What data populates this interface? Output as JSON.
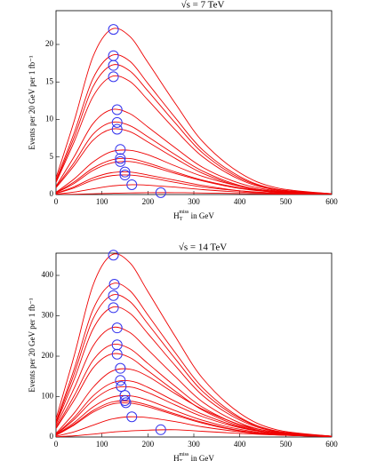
{
  "chart_data": [
    {
      "type": "line",
      "title": "√s = 7 TeV",
      "ylabel": "Events per 20 GeV per 1 fb⁻¹",
      "xlabel": {
        "main": "H",
        "sub": "T",
        "sup": "miss",
        "rest": " in GeV"
      },
      "color": "#ee0000",
      "marker_color": "#3333ee",
      "xlim": [
        0,
        600
      ],
      "xticks": [
        0,
        100,
        200,
        300,
        400,
        500,
        600
      ],
      "ylim": [
        0,
        24.5
      ],
      "yticks": [
        0,
        5,
        10,
        15,
        20
      ],
      "x": [
        0,
        40,
        80,
        120,
        160,
        200,
        260,
        320,
        400,
        480,
        600
      ],
      "series": [
        {
          "values": [
            2.2,
            9.9,
            18.3,
            22,
            21.1,
            17.6,
            12.1,
            7.0,
            2.9,
            0.9,
            0.1
          ]
        },
        {
          "values": [
            1.9,
            8.3,
            15.4,
            18.5,
            17.8,
            14.8,
            10.2,
            5.9,
            2.4,
            0.7,
            0.1
          ]
        },
        {
          "values": [
            1.7,
            7.7,
            14.3,
            17.2,
            16.5,
            13.8,
            9.5,
            5.5,
            2.2,
            0.7,
            0.1
          ]
        },
        {
          "values": [
            1.6,
            7.1,
            13.0,
            15.7,
            15.1,
            12.6,
            8.6,
            5.0,
            2.0,
            0.6,
            0.1
          ]
        },
        {
          "values": [
            1.1,
            5.1,
            9.4,
            11.3,
            10.8,
            9.0,
            6.2,
            3.6,
            1.5,
            0.5,
            0.1
          ]
        },
        {
          "values": [
            1.0,
            4.3,
            8.0,
            9.6,
            9.2,
            7.7,
            5.3,
            3.1,
            1.2,
            0.4,
            0.05
          ]
        },
        {
          "values": [
            0.9,
            3.9,
            7.2,
            8.7,
            8.4,
            7.0,
            4.8,
            2.8,
            1.1,
            0.3,
            0.04
          ]
        },
        {
          "values": [
            0.3,
            2.1,
            4.3,
            5.7,
            5.9,
            5.3,
            3.8,
            2.4,
            1.1,
            0.4,
            0.06
          ]
        },
        {
          "values": [
            0.24,
            1.7,
            3.5,
            4.6,
            4.8,
            4.2,
            3.0,
            1.9,
            0.9,
            0.3,
            0.05
          ]
        },
        {
          "values": [
            0.22,
            1.5,
            3.2,
            4.2,
            4.4,
            3.9,
            2.8,
            1.8,
            0.8,
            0.3,
            0.04
          ]
        },
        {
          "values": [
            0.15,
            1.05,
            2.2,
            2.9,
            3.0,
            2.6,
            1.9,
            1.2,
            0.5,
            0.2,
            0.03
          ]
        },
        {
          "values": [
            0.13,
            0.9,
            1.9,
            2.5,
            2.6,
            2.3,
            1.6,
            1.0,
            0.5,
            0.2,
            0.03
          ]
        },
        {
          "values": [
            0.04,
            0.33,
            0.75,
            1.13,
            1.3,
            1.24,
            0.98,
            0.65,
            0.33,
            0.13,
            0.03
          ]
        },
        {
          "values": [
            0.005,
            0.04,
            0.1,
            0.16,
            0.21,
            0.24,
            0.25,
            0.2,
            0.13,
            0.06,
            0.02
          ]
        }
      ],
      "peaks": {
        "x": [
          125,
          125,
          125,
          125,
          133,
          133,
          133,
          140,
          140,
          140,
          150,
          150,
          165,
          228
        ],
        "y": [
          22,
          18.5,
          17.2,
          15.7,
          11.3,
          9.6,
          8.7,
          6.0,
          4.8,
          4.4,
          3.0,
          2.6,
          1.3,
          0.25
        ]
      }
    },
    {
      "type": "line",
      "title": "√s = 14 TeV",
      "ylabel": "Events per 20 GeV per 1 fb⁻¹",
      "xlabel": {
        "main": "H",
        "sub": "T",
        "sup": "miss",
        "rest": " in GeV"
      },
      "color": "#ee0000",
      "marker_color": "#3333ee",
      "xlim": [
        0,
        600
      ],
      "xticks": [
        0,
        100,
        200,
        300,
        400,
        500,
        600
      ],
      "ylim": [
        0,
        455
      ],
      "yticks": [
        0,
        100,
        200,
        300,
        400
      ],
      "x": [
        0,
        40,
        80,
        120,
        160,
        200,
        260,
        320,
        400,
        480,
        600
      ],
      "series": [
        {
          "values": [
            45,
            203,
            374,
            450,
            432,
            360,
            248,
            144,
            59,
            18,
            2
          ]
        },
        {
          "values": [
            38,
            170,
            314,
            378,
            363,
            302,
            208,
            121,
            49,
            15,
            2
          ]
        },
        {
          "values": [
            35,
            158,
            291,
            350,
            336,
            280,
            193,
            112,
            46,
            14,
            2
          ]
        },
        {
          "values": [
            32,
            144,
            266,
            320,
            307,
            256,
            176,
            102,
            42,
            13,
            2
          ]
        },
        {
          "values": [
            27,
            122,
            224,
            270,
            259,
            216,
            149,
            86,
            35,
            11,
            1
          ]
        },
        {
          "values": [
            23,
            103,
            189,
            228,
            219,
            182,
            125,
            73,
            30,
            9,
            1
          ]
        },
        {
          "values": [
            21,
            92,
            170,
            205,
            197,
            164,
            113,
            66,
            27,
            8,
            1
          ]
        },
        {
          "values": [
            9,
            60,
            122,
            162,
            168,
            150,
            107,
            68,
            31,
            12,
            2
          ]
        },
        {
          "values": [
            7,
            49,
            101,
            133,
            139,
            123,
            88,
            56,
            25,
            10,
            1
          ]
        },
        {
          "values": [
            6,
            44,
            90,
            119,
            124,
            110,
            79,
            50,
            23,
            9,
            1
          ]
        },
        {
          "values": [
            5,
            36,
            74,
            98,
            102,
            91,
            65,
            41,
            19,
            7,
            1
          ]
        },
        {
          "values": [
            5,
            32,
            65,
            86,
            89,
            79,
            57,
            36,
            16,
            6,
            1
          ]
        },
        {
          "values": [
            4,
            30,
            61,
            81,
            84,
            75,
            54,
            34,
            15,
            6,
            1
          ]
        },
        {
          "values": [
            2,
            13,
            29,
            44,
            50,
            48,
            38,
            25,
            13,
            5,
            1
          ]
        },
        {
          "values": [
            0.4,
            3,
            7,
            12,
            15,
            17,
            18,
            14,
            9,
            5,
            1
          ]
        }
      ],
      "peaks": {
        "x": [
          125,
          127,
          125,
          125,
          133,
          133,
          133,
          140,
          140,
          142,
          150,
          150,
          152,
          165,
          228
        ],
        "y": [
          450,
          378,
          350,
          320,
          270,
          228,
          205,
          170,
          140,
          125,
          103,
          90,
          85,
          50,
          18
        ]
      }
    }
  ]
}
